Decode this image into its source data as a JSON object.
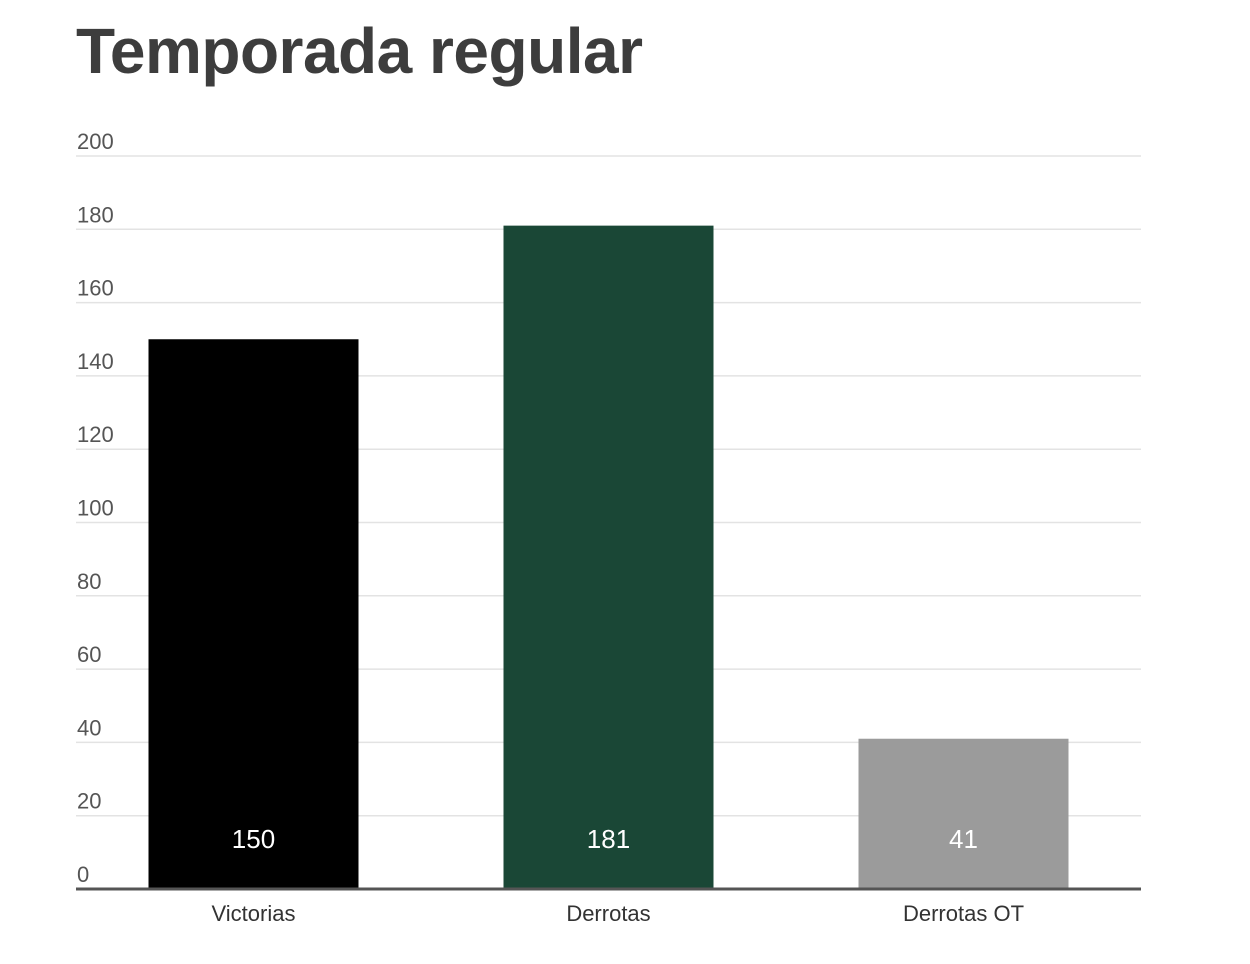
{
  "chart_data": {
    "type": "bar",
    "title": "Temporada regular",
    "categories": [
      "Victorias",
      "Derrotas",
      "Derrotas OT"
    ],
    "values": [
      150,
      181,
      41
    ],
    "data_labels": [
      "150",
      "181",
      "41"
    ],
    "bar_colors": [
      "#000000",
      "#1a4736",
      "#9b9b9b"
    ],
    "ylim": [
      0,
      200
    ],
    "yticks": [
      0,
      20,
      40,
      60,
      80,
      100,
      120,
      140,
      160,
      180,
      200
    ],
    "xlabel": "",
    "ylabel": "",
    "grid": true,
    "legend": "none"
  },
  "colors": {
    "title": "#3d3d3d",
    "grid": "#e3e3e3",
    "axis": "#555555",
    "tick_text": "#555555",
    "data_label_text": "#ffffff"
  }
}
